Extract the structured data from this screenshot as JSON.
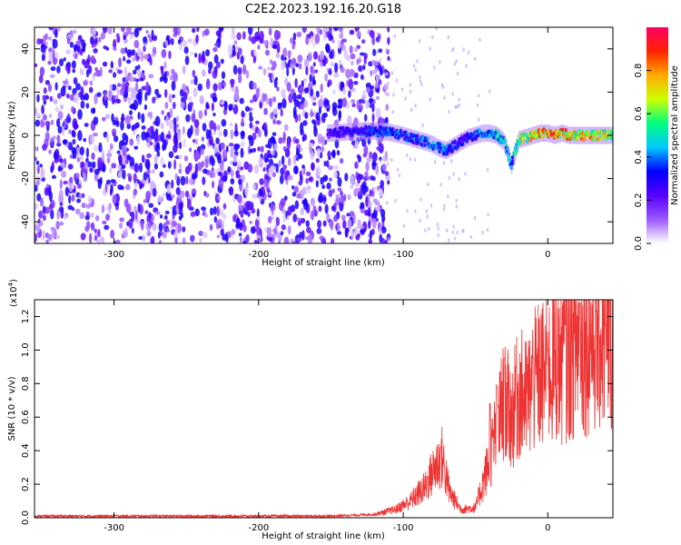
{
  "title": "C2E2.2023.192.16.20.G18",
  "colorbar": {
    "label": "Normalized spectral amplitude",
    "ticks": [
      0.0,
      0.2,
      0.4,
      0.6,
      0.8
    ],
    "tick_labels": [
      "0.0",
      "0.2",
      "0.4",
      "0.6",
      "0.8"
    ],
    "range": [
      0,
      1
    ],
    "stops": [
      "#ffffff",
      "#9b59ff",
      "#5500ff",
      "#0000ff",
      "#00c8ff",
      "#00ff80",
      "#ccff00",
      "#ffaa00",
      "#ff2200",
      "#ff0066"
    ]
  },
  "chart_data": [
    {
      "type": "heatmap",
      "name": "spectrogram",
      "xlabel": "Height of straight line (km)",
      "ylabel": "Frequency (Hz)",
      "xlim": [
        -355,
        45
      ],
      "ylim": [
        -50,
        50
      ],
      "xticks": [
        -300,
        -200,
        -100,
        0
      ],
      "xtick_labels": [
        "-300",
        "-200",
        "-100",
        "0"
      ],
      "yticks": [
        -40,
        -20,
        0,
        20,
        40
      ],
      "ytick_labels": [
        "-40",
        "-20",
        "0",
        "20",
        "40"
      ],
      "noise_region_x": [
        -355,
        -120
      ],
      "noise_amplitude": 0.12,
      "signal_track": {
        "x": [
          -152,
          -140,
          -130,
          -120,
          -110,
          -100,
          -90,
          -80,
          -75,
          -70,
          -65,
          -60,
          -55,
          -50,
          -45,
          -40,
          -35,
          -30,
          -25,
          -20,
          -15,
          -10,
          -5,
          0,
          5,
          10,
          15,
          20,
          25,
          30,
          35,
          40,
          45
        ],
        "freq": [
          1,
          1.5,
          2,
          2,
          1.5,
          0,
          -2,
          -4,
          -6,
          -7,
          -5,
          -3,
          -1,
          0,
          1,
          1,
          0,
          -3,
          -14,
          -2,
          -1,
          0,
          1,
          1,
          0,
          1,
          0,
          0,
          0,
          0,
          0,
          0,
          0
        ],
        "amplitude": [
          0.25,
          0.3,
          0.35,
          0.4,
          0.4,
          0.4,
          0.4,
          0.45,
          0.45,
          0.4,
          0.35,
          0.3,
          0.35,
          0.4,
          0.45,
          0.45,
          0.5,
          0.55,
          0.45,
          0.7,
          0.75,
          0.8,
          0.85,
          0.9,
          0.9,
          0.9,
          0.85,
          0.8,
          0.8,
          0.8,
          0.8,
          0.75,
          0.75
        ]
      }
    },
    {
      "type": "line",
      "name": "snr",
      "xlabel": "Height of straight line (km)",
      "ylabel": "SNR (10 * v/v)",
      "scale_label": "(x10",
      "scale_exp": "4",
      "scale_close": ")",
      "xlim": [
        -355,
        45
      ],
      "ylim": [
        0,
        1.3
      ],
      "xticks": [
        -300,
        -200,
        -100,
        0
      ],
      "xtick_labels": [
        "-300",
        "-200",
        "-100",
        "0"
      ],
      "yticks": [
        0.0,
        0.2,
        0.4,
        0.6,
        0.8,
        1.0,
        1.2
      ],
      "ytick_labels": [
        "0.0",
        "0.2",
        "0.4",
        "0.6",
        "0.8",
        "1.0",
        "1.2"
      ],
      "color": "#ee3333",
      "envelope": {
        "x": [
          -355,
          -150,
          -120,
          -105,
          -95,
          -85,
          -78,
          -73,
          -68,
          -60,
          -50,
          -40,
          -35,
          -30,
          -25,
          -20,
          -15,
          -10,
          -5,
          0,
          5,
          10,
          15,
          20,
          25,
          30,
          35,
          40,
          45
        ],
        "y": [
          0.01,
          0.01,
          0.02,
          0.05,
          0.1,
          0.18,
          0.3,
          0.36,
          0.15,
          0.05,
          0.06,
          0.35,
          0.55,
          0.7,
          0.6,
          0.75,
          0.7,
          0.8,
          0.85,
          0.85,
          0.95,
          0.95,
          0.98,
          1.05,
          1.05,
          1.07,
          1.08,
          1.1,
          1.12
        ]
      },
      "peaks": {
        "x": [
          -74,
          -40,
          -35,
          -30,
          -22,
          -10,
          0,
          12,
          22,
          40
        ],
        "y": [
          0.42,
          0.68,
          0.78,
          0.95,
          0.9,
          0.95,
          1.0,
          1.15,
          1.28,
          1.15
        ]
      }
    }
  ]
}
